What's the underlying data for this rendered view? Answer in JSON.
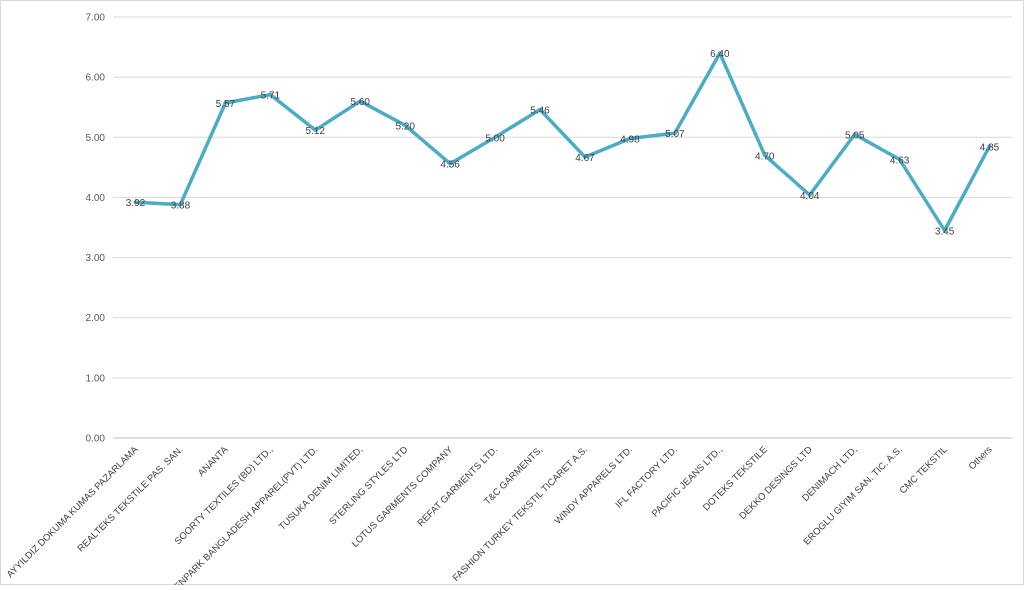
{
  "chart_data": {
    "type": "line",
    "title": "",
    "xlabel": "",
    "ylabel": "",
    "ylim": [
      0,
      7
    ],
    "yticks": [
      "0.00",
      "1.00",
      "2.00",
      "3.00",
      "4.00",
      "5.00",
      "6.00",
      "7.00"
    ],
    "grid": true,
    "legend": "none",
    "categories": [
      "AYYILDIZ DOKUMA KUMAS PAZARLAMA",
      "REALTEKS TEKSTILE PAS. SAN.",
      "ANANTA",
      "SOORTY TEXTILES (BD) LTD.,",
      "KENPARK BANGLADESH APPAREL(PVT) LTD.",
      "TUSUKA DENIM LIMITED,",
      "STERLING STYLES LTD",
      "LOTUS GARMENTS COMPANY",
      "REFAT GARMENTS LTD.",
      "T&C GARMENTS,",
      "FASHION TURKEY TEKSTIL TICARET A.S.",
      "WINDY APPARELS LTD.",
      "IFL FACTORY LTD.",
      "PACIFIC JEANS LTD.,",
      "DOTEKS TEKSTILE",
      "DEKKO DESINGS LTD",
      "DENIMACH LTD,",
      "EROGLU GIYIM SAN. TIC. A.S.",
      "CMC TEKSTIL",
      "Others"
    ],
    "series": [
      {
        "values": [
          3.92,
          3.88,
          5.57,
          5.71,
          5.12,
          5.6,
          5.2,
          4.56,
          5.0,
          5.46,
          4.67,
          4.98,
          5.07,
          6.4,
          4.7,
          4.04,
          5.05,
          4.63,
          3.45,
          4.85
        ],
        "labels": [
          "3.92",
          "3.88",
          "5.57",
          "5.71",
          "5.12",
          "5.60",
          "5.20",
          "4.56",
          "5.00",
          "5.46",
          "4.67",
          "4.98",
          "5.07",
          "6.40",
          "4.70",
          "4.04",
          "5.05",
          "4.63",
          "3.45",
          "4.85"
        ]
      }
    ],
    "colors": {
      "line": "#4bacc6",
      "grid": "#d9d9d9",
      "text": "#404040"
    }
  }
}
